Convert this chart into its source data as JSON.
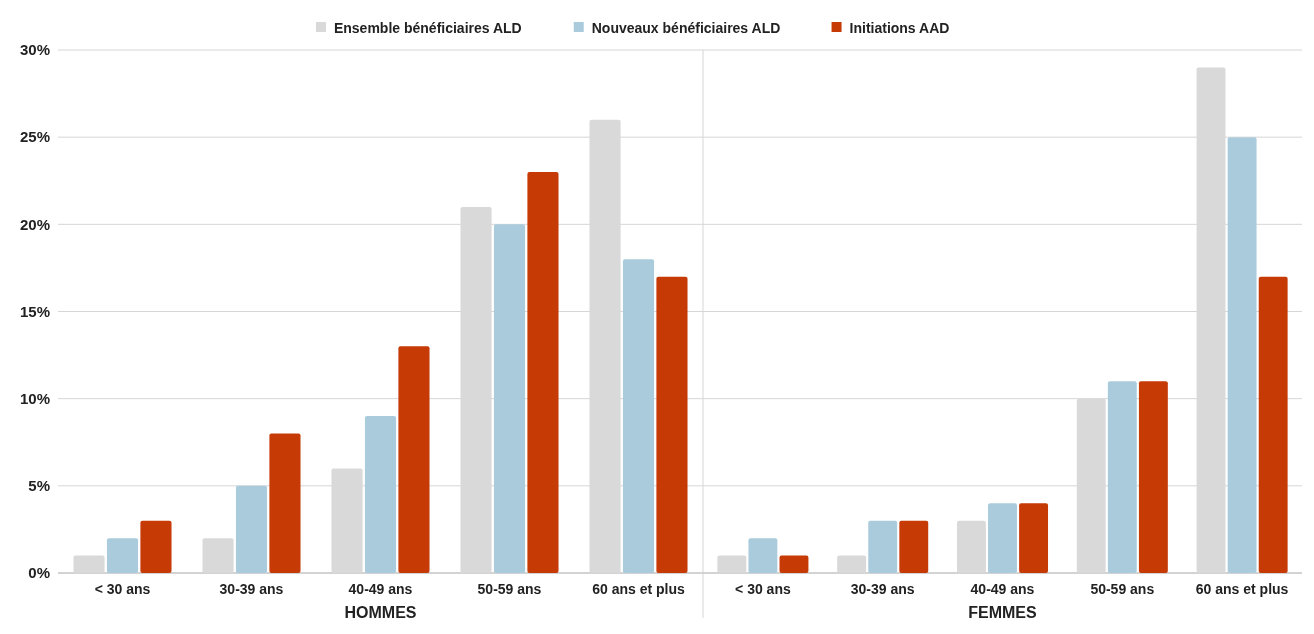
{
  "chart_data": [
    {
      "type": "bar",
      "xlabel": "HOMMES",
      "categories": [
        "< 30 ans",
        "30-39 ans",
        "40-49 ans",
        "50-59 ans",
        "60 ans et plus"
      ],
      "series": [
        {
          "name": "Ensemble bénéficiaires ALD",
          "color": "#d9d9d9",
          "values": [
            1,
            2,
            6,
            21,
            26
          ]
        },
        {
          "name": "Nouveaux bénéficiaires ALD",
          "color": "#a9cbdc",
          "values": [
            2,
            5,
            9,
            20,
            18
          ]
        },
        {
          "name": "Initiations AAD",
          "color": "#c63a06",
          "values": [
            3,
            8,
            13,
            23,
            17
          ]
        }
      ],
      "ylim": [
        0,
        30
      ],
      "yticks": [
        {
          "value": 0,
          "label": "0%"
        },
        {
          "value": 5,
          "label": "5%"
        },
        {
          "value": 10,
          "label": "10%"
        },
        {
          "value": 15,
          "label": "15%"
        },
        {
          "value": 20,
          "label": "20%"
        },
        {
          "value": 25,
          "label": "25%"
        },
        {
          "value": 30,
          "label": "30%"
        }
      ],
      "grid": "y",
      "legend": "top"
    },
    {
      "type": "bar",
      "xlabel": "FEMMES",
      "categories": [
        "< 30 ans",
        "30-39 ans",
        "40-49 ans",
        "50-59 ans",
        "60 ans et plus"
      ],
      "series": [
        {
          "color": "#d9d9d9",
          "values": [
            1,
            1,
            3,
            10,
            29
          ]
        },
        {
          "color": "#a9cbdc",
          "values": [
            2,
            3,
            4,
            11,
            25
          ]
        },
        {
          "color": "#c63a06",
          "values": [
            1,
            3,
            4,
            11,
            17
          ]
        }
      ],
      "ylim": [
        0,
        30
      ],
      "yticks": [
        0,
        5,
        10,
        15,
        20,
        25,
        30
      ],
      "grid": "y",
      "tick_labels": "x"
    }
  ]
}
